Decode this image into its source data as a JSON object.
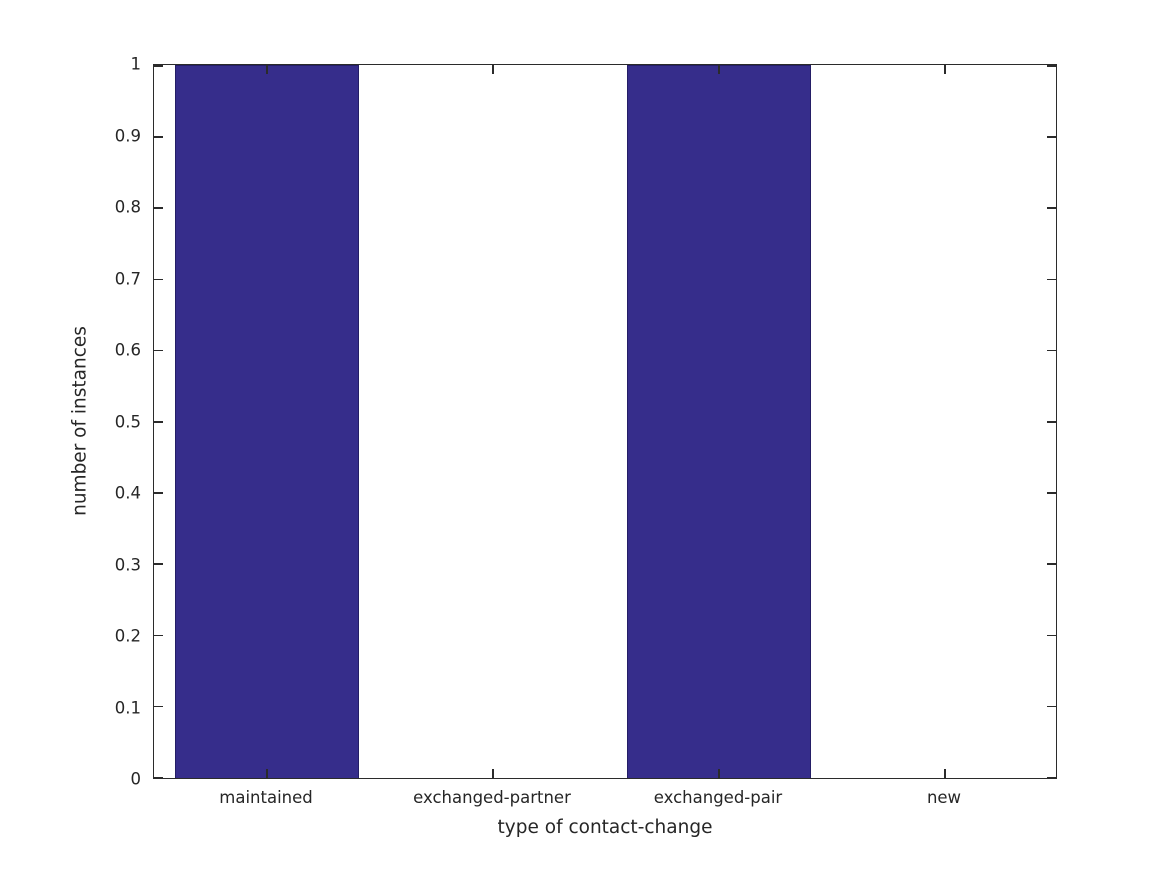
{
  "figure": {
    "background": "#ffffff"
  },
  "chart_data": {
    "type": "bar",
    "categories": [
      "maintained",
      "exchanged-partner",
      "exchanged-pair",
      "new"
    ],
    "values": [
      1,
      0,
      1,
      0
    ],
    "title": "",
    "xlabel": "type of contact-change",
    "ylabel": "number of instances",
    "ylim": [
      0,
      1
    ],
    "yticks": [
      0,
      0.1,
      0.2,
      0.3,
      0.4,
      0.5,
      0.6,
      0.7,
      0.8,
      0.9,
      1
    ],
    "ytick_labels": [
      "0",
      "0.1",
      "0.2",
      "0.3",
      "0.4",
      "0.5",
      "0.6",
      "0.7",
      "0.8",
      "0.9",
      "1"
    ],
    "bar_width_fraction": 0.81,
    "grid": false,
    "legend": null,
    "layout_hints": {
      "box_frame": true,
      "ticks_direction": "in",
      "ticks_sides": [
        "left",
        "right",
        "top",
        "bottom"
      ]
    },
    "colors": {
      "bar_fill": "#362D8B",
      "bar_edge": "#241e66",
      "axis_line": "#2b2b2b",
      "text": "#262626"
    }
  }
}
